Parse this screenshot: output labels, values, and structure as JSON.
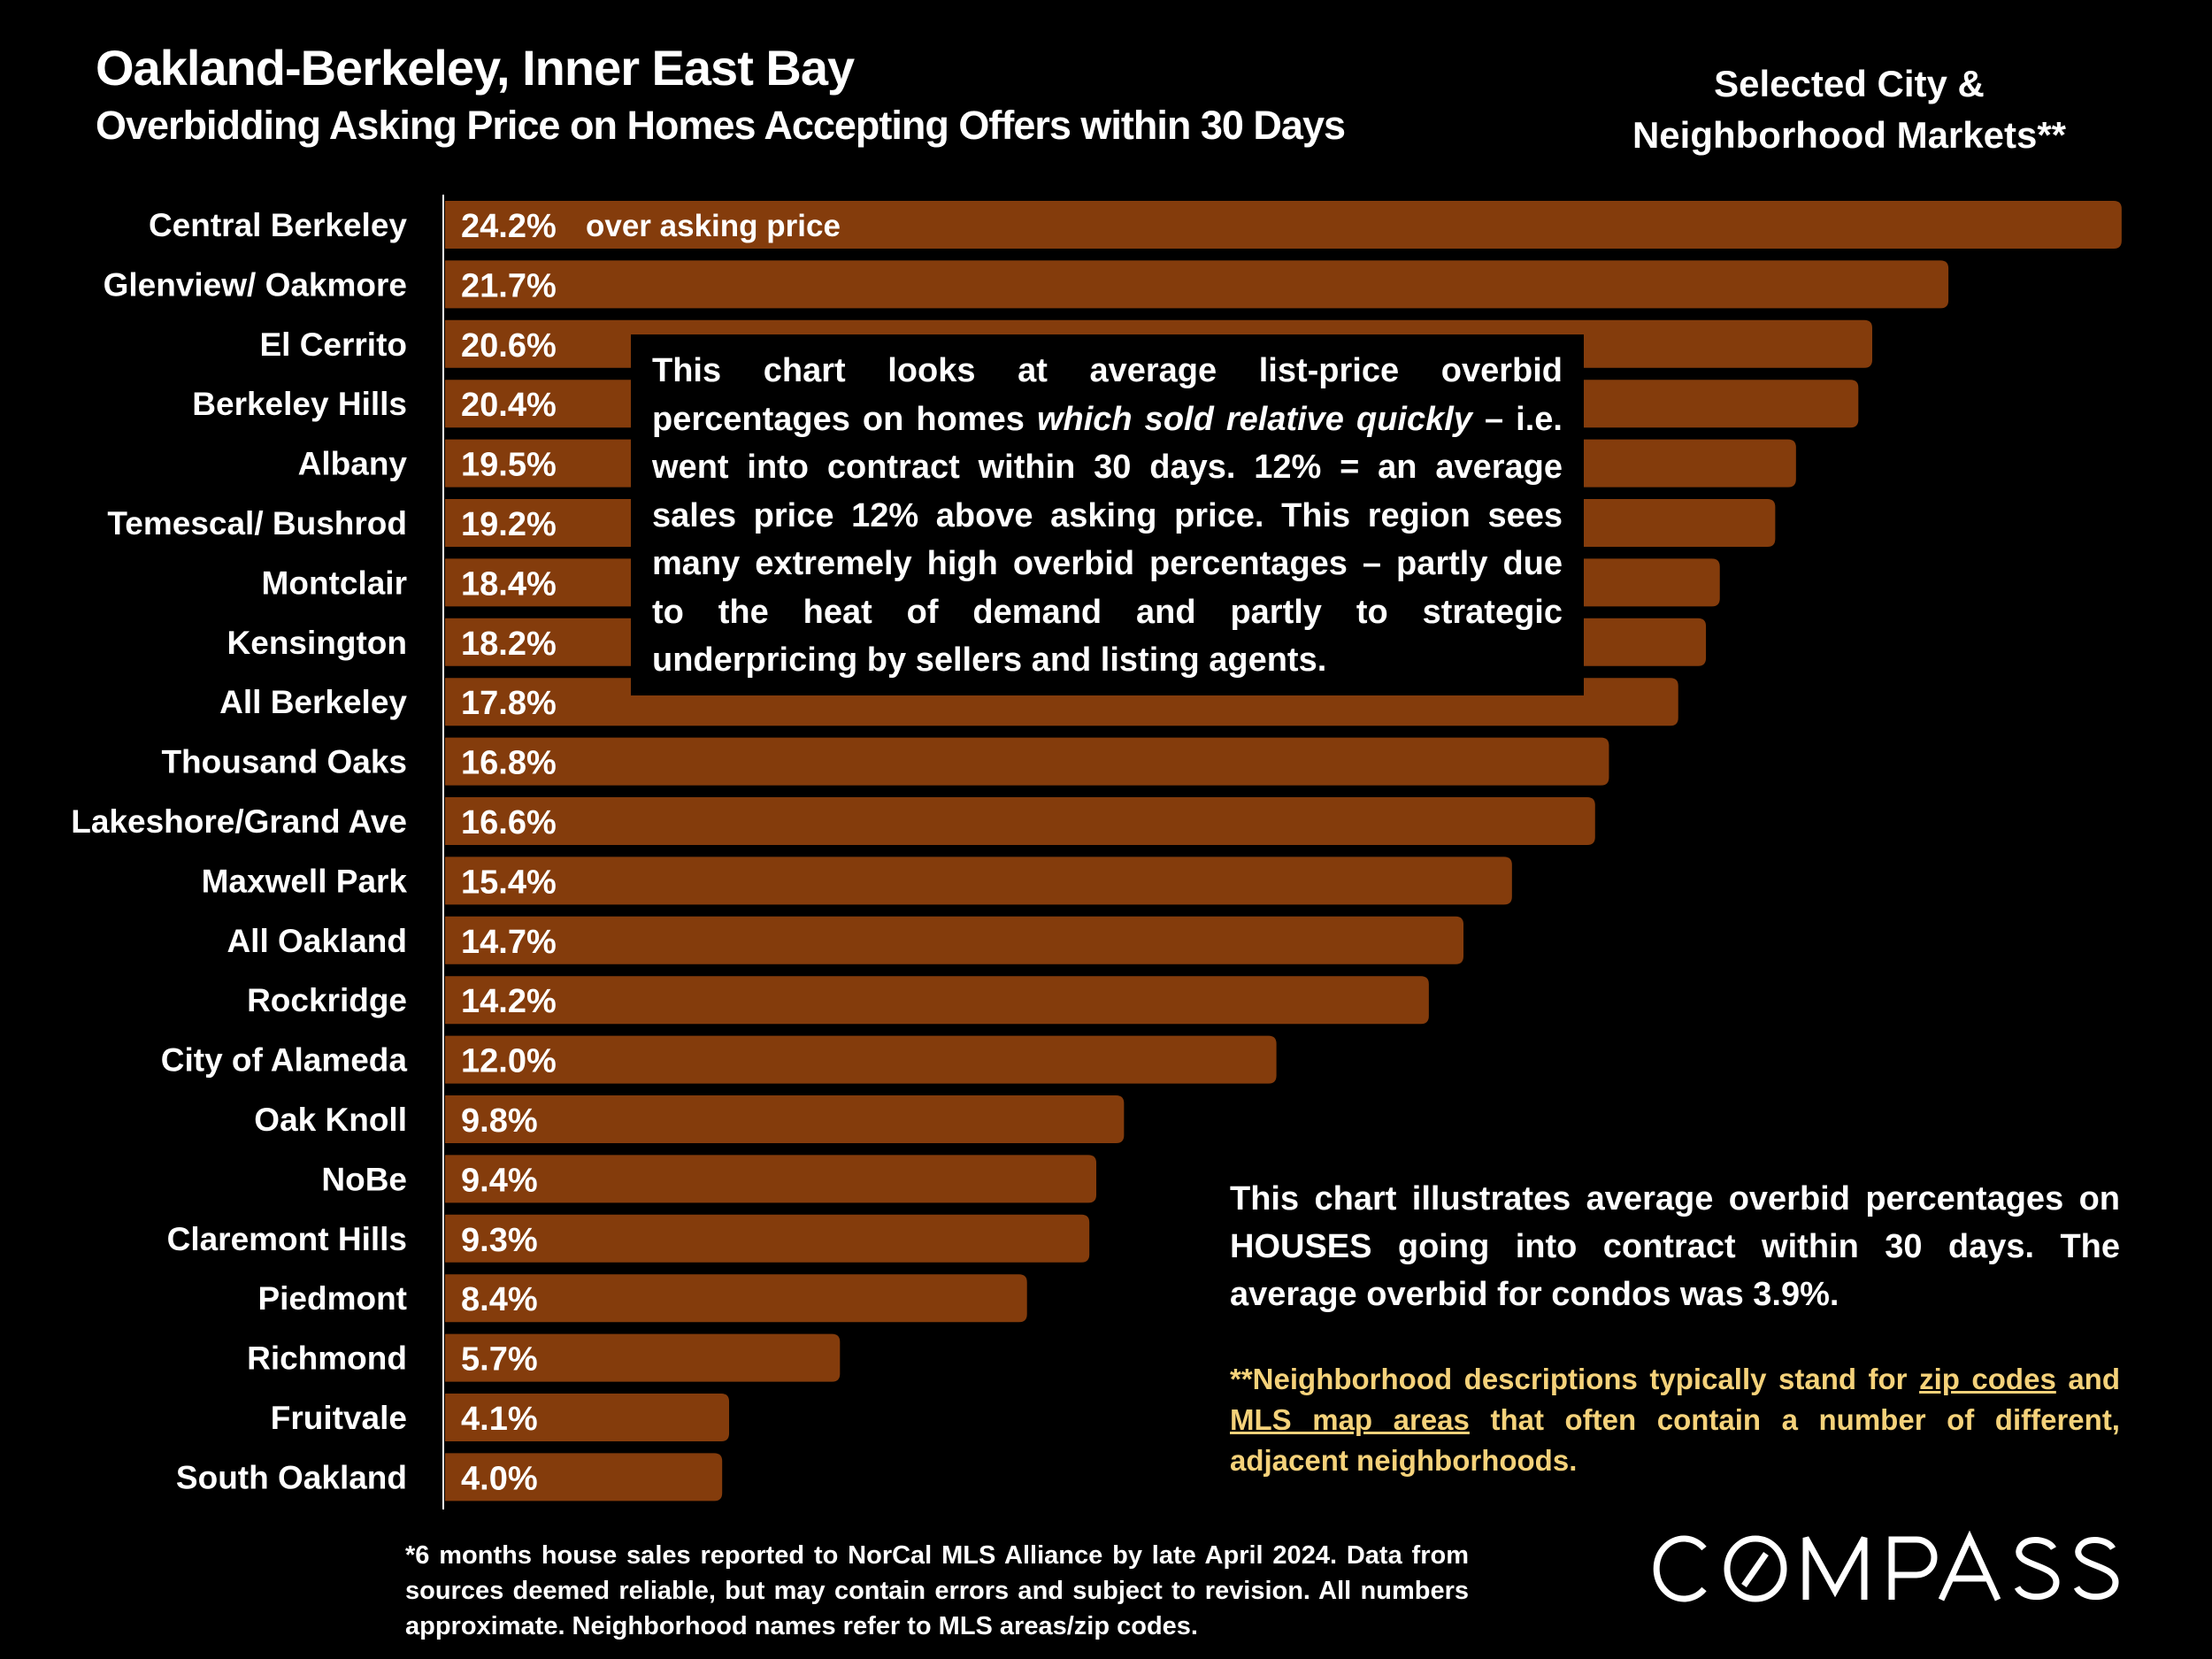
{
  "header": {
    "title": "Oakland-Berkeley, Inner East Bay",
    "subtitle": "Overbidding Asking Price on Homes Accepting Offers within 30 Days",
    "side_title_line1": "Selected City &",
    "side_title_line2": "Neighborhood Markets**"
  },
  "chart_data": {
    "type": "bar",
    "orientation": "horizontal",
    "title": "Overbidding Asking Price on Homes Accepting Offers within 30 Days",
    "xlabel": "",
    "ylabel": "",
    "unit": "%",
    "xlim": [
      0,
      25
    ],
    "grid": false,
    "bar_color": "#843c0c",
    "first_bar_annotation": "over asking price",
    "categories": [
      "Central Berkeley",
      "Glenview/ Oakmore",
      "El Cerrito",
      "Berkeley Hills",
      "Albany",
      "Temescal/ Bushrod",
      "Montclair",
      "Kensington",
      "All Berkeley",
      "Thousand Oaks",
      "Lakeshore/Grand Ave",
      "Maxwell Park",
      "All Oakland",
      "Rockridge",
      "City of Alameda",
      "Oak Knoll",
      "NoBe",
      "Claremont Hills",
      "Piedmont",
      "Richmond",
      "Fruitvale",
      "South Oakland"
    ],
    "values": [
      24.2,
      21.7,
      20.6,
      20.4,
      19.5,
      19.2,
      18.4,
      18.2,
      17.8,
      16.8,
      16.6,
      15.4,
      14.7,
      14.2,
      12.0,
      9.8,
      9.4,
      9.3,
      8.4,
      5.7,
      4.1,
      4.0
    ],
    "labels": [
      "24.2%",
      "21.7%",
      "20.6%",
      "20.4%",
      "19.5%",
      "19.2%",
      "18.4%",
      "18.2%",
      "17.8%",
      "16.8%",
      "16.6%",
      "15.4%",
      "14.7%",
      "14.2%",
      "12.0%",
      "9.8%",
      "9.4%",
      "9.3%",
      "8.4%",
      "5.7%",
      "4.1%",
      "4.0%"
    ]
  },
  "info_box": {
    "part1": "This chart looks at average list-price overbid percentages on homes ",
    "italic": "which sold relative quickly",
    "part2": " – i.e. went into contract within 30 days. 12% = an average sales price 12% above asking price. This region sees many extremely high overbid percentages – partly due to the heat of demand and partly to strategic underpricing by sellers and listing agents."
  },
  "notes": {
    "houses_note": "This chart illustrates average overbid percentages on HOUSES going into contract within 30 days. The average overbid for condos was 3.9%.",
    "neighborhood_note_prefix": "**Neighborhood descriptions typically stand for ",
    "neighborhood_link1": "zip codes",
    "neighborhood_note_mid": " and ",
    "neighborhood_link2": "MLS map areas",
    "neighborhood_note_suffix": " that often contain a number of different, adjacent neighborhoods.",
    "note_color": "#f5d27a"
  },
  "footnote": "*6 months house sales reported to NorCal MLS Alliance by late April 2024. Data from sources deemed reliable, but may contain errors and subject to revision. All numbers approximate. Neighborhood names refer to MLS areas/zip codes.",
  "logo": {
    "text": "COMPASS"
  }
}
